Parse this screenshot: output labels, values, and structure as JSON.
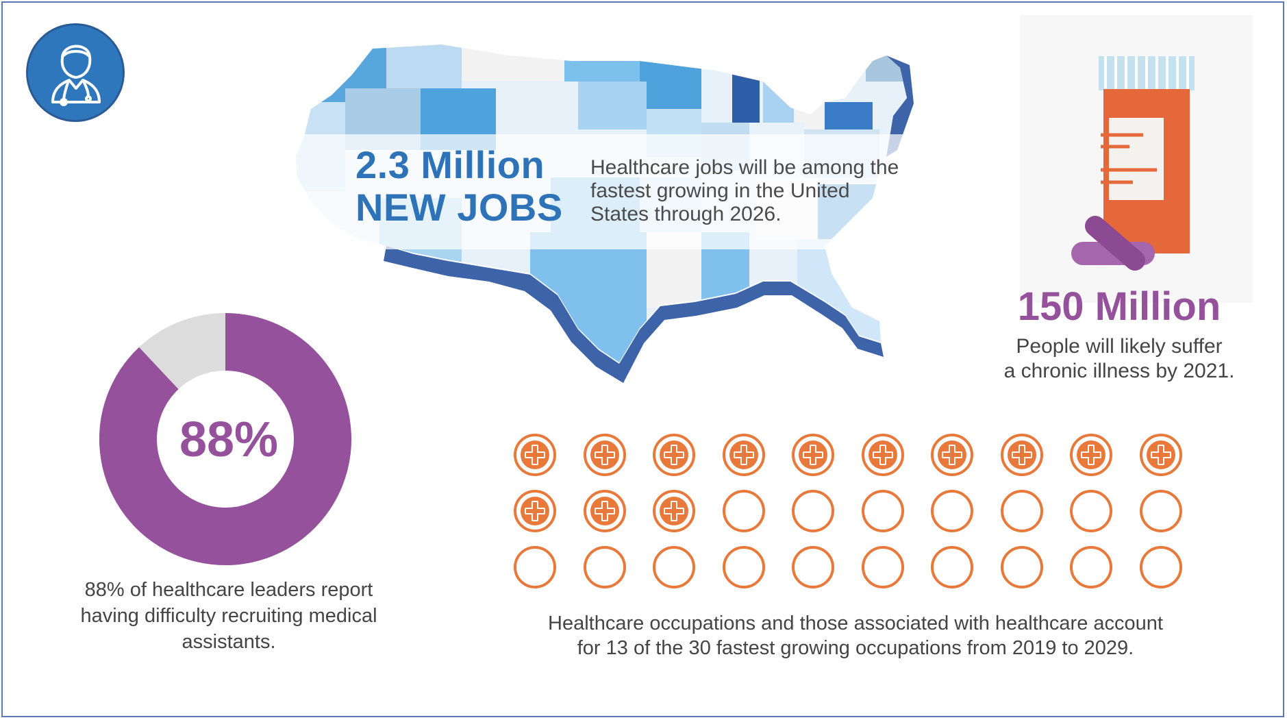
{
  "jobs": {
    "headline_line1": "2.3 Million",
    "headline_line2": "NEW JOBS",
    "description": "Healthcare jobs will be among the fastest growing in the United States through 2026."
  },
  "chronic": {
    "headline": "150 Million",
    "description_line1": "People will likely suffer",
    "description_line2": "a chronic illness by 2021."
  },
  "leaders": {
    "percent_label": "88%",
    "percent_value": 88,
    "description_line1": "88% of healthcare leaders report",
    "description_line2": "having difficulty recruiting medical",
    "description_line3": "assistants."
  },
  "occupations": {
    "filled": 13,
    "total": 30,
    "description_line1": "Healthcare occupations and those associated with healthcare account",
    "description_line2": "for 13 of the 30 fastest growing occupations from 2019 to 2029."
  },
  "colors": {
    "purple": "#95519b",
    "blue": "#2e72b8",
    "orange": "#e8793a",
    "grey": "#dcdcdc"
  },
  "icons": {
    "avatar": "doctor-icon",
    "bottle": "pill-bottle-icon",
    "cross": "medical-cross-icon"
  }
}
